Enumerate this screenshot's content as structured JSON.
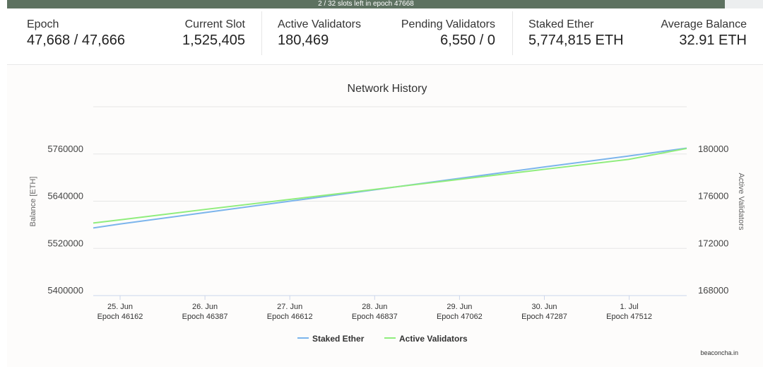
{
  "banner": "2 / 32 slots left in epoch 47668",
  "stats": [
    {
      "label": "Epoch",
      "value": "47,668 / 47,666"
    },
    {
      "label": "Current Slot",
      "value": "1,525,405"
    },
    {
      "label": "Active Validators",
      "value": "180,469"
    },
    {
      "label": "Pending Validators",
      "value": "6,550 / 0"
    },
    {
      "label": "Staked Ether",
      "value": "5,774,815 ETH"
    },
    {
      "label": "Average Balance",
      "value": "32.91 ETH"
    }
  ],
  "credit": "beaconcha.in",
  "chart_data": {
    "type": "line",
    "title": "Network History",
    "ylabel": "Balance [ETH]",
    "y2label": "Active Validators",
    "ylim": [
      5400000,
      5880000
    ],
    "y2lim": [
      168000,
      184000
    ],
    "yticks": [
      "5400000",
      "5520000",
      "5640000",
      "5760000"
    ],
    "y2ticks": [
      "168000",
      "172000",
      "176000",
      "180000"
    ],
    "xticks": [
      {
        "date": "25. Jun",
        "epoch": "Epoch 46162"
      },
      {
        "date": "26. Jun",
        "epoch": "Epoch 46387"
      },
      {
        "date": "27. Jun",
        "epoch": "Epoch 46612"
      },
      {
        "date": "28. Jun",
        "epoch": "Epoch 46837"
      },
      {
        "date": "29. Jun",
        "epoch": "Epoch 47062"
      },
      {
        "date": "30. Jun",
        "epoch": "Epoch 47287"
      },
      {
        "date": "1. Jul",
        "epoch": "Epoch 47512"
      }
    ],
    "x": [
      "24 Jun 16:00",
      "25 Jun",
      "26 Jun",
      "27 Jun",
      "28 Jun",
      "29 Jun",
      "30 Jun",
      "1 Jul",
      "1 Jul 16:00"
    ],
    "grid": true,
    "legend": "bottom",
    "series": [
      {
        "name": "Staked Ether",
        "axis": "left",
        "color": "#7cb5ec",
        "values": [
          5572000,
          5582000,
          5611000,
          5640000,
          5669000,
          5698000,
          5727000,
          5755000,
          5774815
        ]
      },
      {
        "name": "Active Validators",
        "axis": "right",
        "color": "#90ed7d",
        "values": [
          174150,
          174420,
          175300,
          176150,
          177000,
          177850,
          178700,
          179550,
          180469
        ]
      }
    ]
  }
}
